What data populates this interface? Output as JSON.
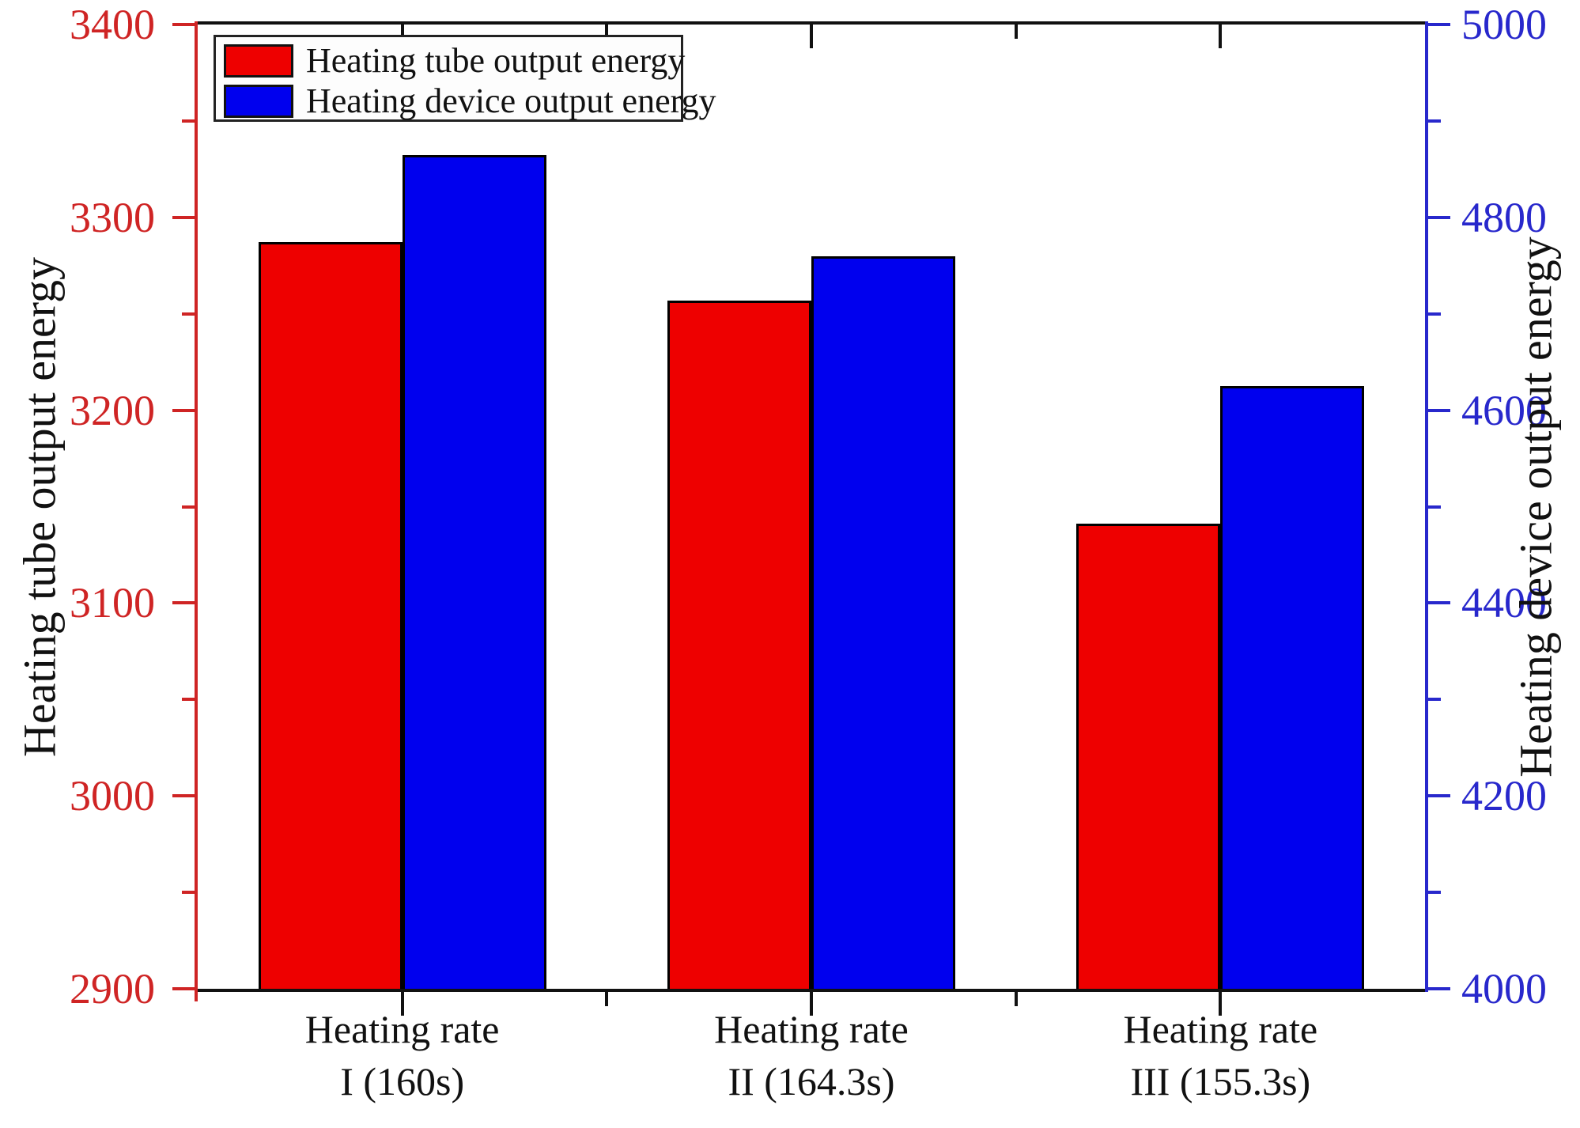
{
  "chart_data": {
    "type": "bar",
    "title": "",
    "grid": false,
    "legend_position": "top-left",
    "categories": [
      {
        "line1": "Heating rate",
        "line2": "I (160s)"
      },
      {
        "line1": "Heating rate",
        "line2": "II (164.3s)"
      },
      {
        "line1": "Heating rate",
        "line2": "III (155.3s)"
      }
    ],
    "series": [
      {
        "name": "Heating tube output energy",
        "axis": "left",
        "color": "#ee0000",
        "values": [
          3287,
          3257,
          3141
        ]
      },
      {
        "name": "Heating device output energy",
        "axis": "right",
        "color": "#0000ee",
        "values": [
          4865,
          4760,
          4625
        ]
      }
    ],
    "left_axis": {
      "label": "Heating tube output energy",
      "min": 2900,
      "max": 3400,
      "major_ticks": [
        2900,
        3000,
        3100,
        3200,
        3300,
        3400
      ],
      "minor_step": 50,
      "color": "#cf2424"
    },
    "right_axis": {
      "label": "Heating device output energy",
      "min": 4000,
      "max": 5000,
      "major_ticks": [
        4000,
        4200,
        4400,
        4600,
        4800,
        5000
      ],
      "minor_step": 100,
      "color": "#2828cc"
    },
    "x_axis_color": "#111111"
  }
}
